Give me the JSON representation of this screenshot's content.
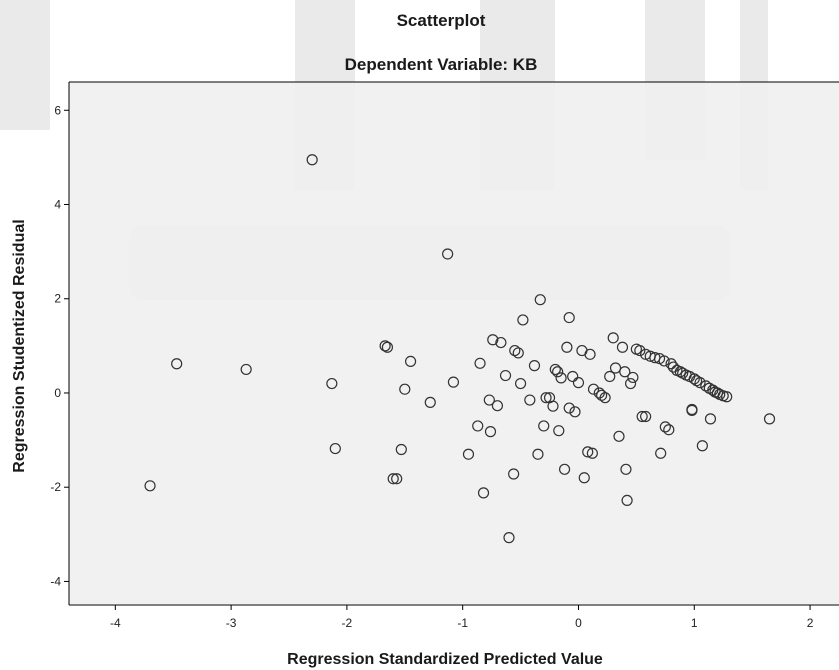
{
  "chart_data": {
    "type": "scatter",
    "title": "Scatterplot",
    "subtitle": "Dependent Variable: KB",
    "xlabel": "Regression Standardized Predicted Value",
    "ylabel": "Regression Studentized Residual",
    "xlim": [
      -4.4,
      2.25
    ],
    "ylim": [
      -4.5,
      6.6
    ],
    "xticks": [
      -4,
      -3,
      -2,
      -1,
      0,
      1,
      2
    ],
    "xtick_labels": [
      "-4",
      "-3",
      "-2",
      "-1",
      "0",
      "1",
      "2"
    ],
    "yticks": [
      -4,
      -2,
      0,
      2,
      4,
      6
    ],
    "ytick_labels": [
      "-4",
      "-2",
      "0",
      "2",
      "4",
      "6"
    ],
    "grid": false,
    "marker": "hollow-circle",
    "colors": {
      "plot_background": "#efefef",
      "marker": "#333333",
      "axis": "#000000",
      "watermark": "#d9d9d9"
    },
    "points": [
      [
        -2.3,
        4.95
      ],
      [
        -1.13,
        2.95
      ],
      [
        -0.33,
        1.98
      ],
      [
        -0.08,
        1.6
      ],
      [
        -0.48,
        1.55
      ],
      [
        -3.7,
        -1.97
      ],
      [
        -3.47,
        0.62
      ],
      [
        -2.87,
        0.5
      ],
      [
        -2.13,
        0.2
      ],
      [
        -2.1,
        -1.18
      ],
      [
        -1.65,
        0.97
      ],
      [
        -1.67,
        1.0
      ],
      [
        -1.45,
        0.67
      ],
      [
        -1.5,
        0.08
      ],
      [
        -1.53,
        -1.2
      ],
      [
        -1.57,
        -1.82
      ],
      [
        -1.6,
        -1.82
      ],
      [
        -1.28,
        -0.2
      ],
      [
        -1.08,
        0.23
      ],
      [
        -0.95,
        -1.3
      ],
      [
        -0.87,
        -0.7
      ],
      [
        -0.85,
        0.63
      ],
      [
        -0.82,
        -2.12
      ],
      [
        -0.77,
        -0.15
      ],
      [
        -0.76,
        -0.82
      ],
      [
        -0.74,
        1.13
      ],
      [
        -0.7,
        -0.27
      ],
      [
        -0.67,
        1.07
      ],
      [
        -0.63,
        0.37
      ],
      [
        -0.56,
        -1.72
      ],
      [
        -0.55,
        0.9
      ],
      [
        -0.52,
        0.85
      ],
      [
        -0.5,
        0.2
      ],
      [
        -0.6,
        -3.07
      ],
      [
        -0.42,
        -0.15
      ],
      [
        -0.38,
        0.58
      ],
      [
        -0.35,
        -1.3
      ],
      [
        -0.3,
        -0.7
      ],
      [
        -0.28,
        -0.1
      ],
      [
        -0.25,
        -0.1
      ],
      [
        -0.22,
        -0.28
      ],
      [
        -0.2,
        0.5
      ],
      [
        -0.18,
        0.45
      ],
      [
        -0.17,
        -0.8
      ],
      [
        -0.15,
        0.32
      ],
      [
        -0.12,
        -1.62
      ],
      [
        -0.1,
        0.97
      ],
      [
        -0.08,
        -0.32
      ],
      [
        -0.05,
        0.35
      ],
      [
        -0.03,
        -0.4
      ],
      [
        0.0,
        0.22
      ],
      [
        0.03,
        0.9
      ],
      [
        0.05,
        -1.8
      ],
      [
        0.1,
        0.82
      ],
      [
        0.08,
        -1.25
      ],
      [
        0.12,
        -1.28
      ],
      [
        0.13,
        0.08
      ],
      [
        0.18,
        0.0
      ],
      [
        0.2,
        -0.05
      ],
      [
        0.23,
        -0.1
      ],
      [
        0.27,
        0.35
      ],
      [
        0.3,
        1.17
      ],
      [
        0.32,
        0.53
      ],
      [
        0.35,
        -0.92
      ],
      [
        0.38,
        0.97
      ],
      [
        0.4,
        0.45
      ],
      [
        0.41,
        -1.62
      ],
      [
        0.42,
        -2.28
      ],
      [
        0.45,
        0.2
      ],
      [
        0.47,
        0.33
      ],
      [
        0.5,
        0.93
      ],
      [
        0.53,
        0.9
      ],
      [
        0.55,
        -0.5
      ],
      [
        0.58,
        0.82
      ],
      [
        0.62,
        0.78
      ],
      [
        0.66,
        0.75
      ],
      [
        0.7,
        0.73
      ],
      [
        0.71,
        -1.28
      ],
      [
        0.74,
        0.68
      ],
      [
        0.75,
        -0.72
      ],
      [
        0.78,
        -0.78
      ],
      [
        0.8,
        0.62
      ],
      [
        0.82,
        0.55
      ],
      [
        0.85,
        0.48
      ],
      [
        0.88,
        0.45
      ],
      [
        0.9,
        0.42
      ],
      [
        0.93,
        0.38
      ],
      [
        0.96,
        0.35
      ],
      [
        0.98,
        -0.35
      ],
      [
        1.0,
        0.3
      ],
      [
        1.02,
        0.26
      ],
      [
        1.05,
        0.22
      ],
      [
        1.07,
        -1.12
      ],
      [
        1.1,
        0.15
      ],
      [
        1.13,
        0.1
      ],
      [
        1.16,
        0.06
      ],
      [
        1.18,
        0.02
      ],
      [
        1.2,
        0.0
      ],
      [
        1.22,
        -0.03
      ],
      [
        1.25,
        -0.06
      ],
      [
        1.28,
        -0.08
      ],
      [
        1.14,
        -0.55
      ],
      [
        1.65,
        -0.55
      ],
      [
        0.58,
        -0.5
      ],
      [
        0.98,
        -0.37
      ]
    ]
  }
}
